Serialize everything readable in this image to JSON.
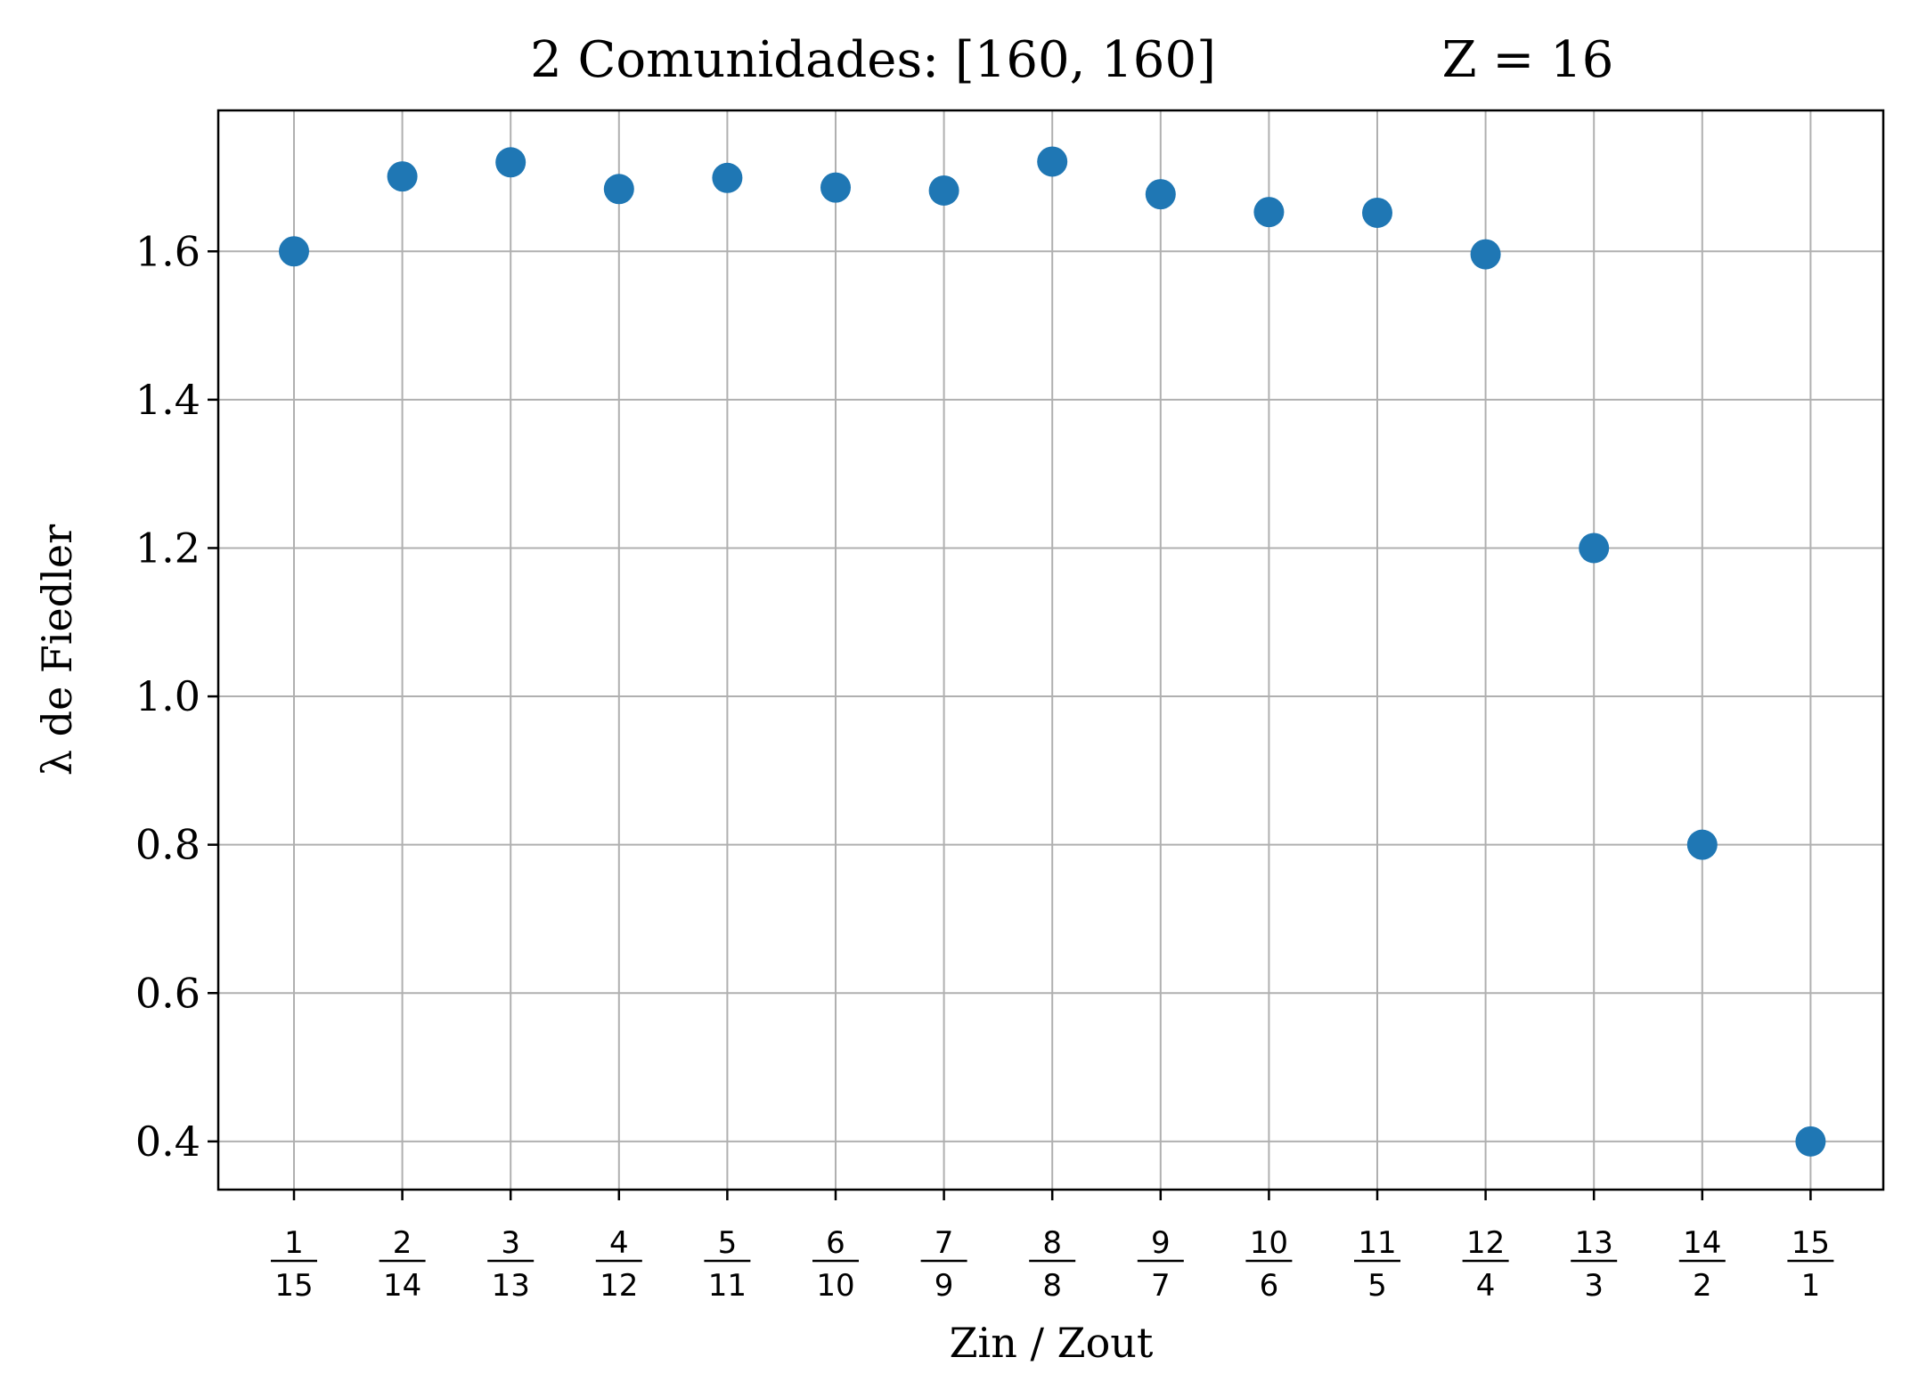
{
  "chart_data": {
    "type": "scatter",
    "title": "2 Comunidades: [160, 160]",
    "title_right": "Z = 16",
    "xlabel": "Zin / Zout",
    "ylabel": "λ de Fiedler",
    "categories": [
      {
        "num": "1",
        "den": "15"
      },
      {
        "num": "2",
        "den": "14"
      },
      {
        "num": "3",
        "den": "13"
      },
      {
        "num": "4",
        "den": "12"
      },
      {
        "num": "5",
        "den": "11"
      },
      {
        "num": "6",
        "den": "10"
      },
      {
        "num": "7",
        "den": "9"
      },
      {
        "num": "8",
        "den": "8"
      },
      {
        "num": "9",
        "den": "7"
      },
      {
        "num": "10",
        "den": "6"
      },
      {
        "num": "11",
        "den": "5"
      },
      {
        "num": "12",
        "den": "4"
      },
      {
        "num": "13",
        "den": "3"
      },
      {
        "num": "14",
        "den": "2"
      },
      {
        "num": "15",
        "den": "1"
      }
    ],
    "values": [
      1.6,
      1.701,
      1.72,
      1.684,
      1.699,
      1.686,
      1.682,
      1.721,
      1.677,
      1.653,
      1.652,
      1.596,
      1.2,
      0.8,
      0.4
    ],
    "yticks": [
      "0.4",
      "0.6",
      "0.8",
      "1.0",
      "1.2",
      "1.4",
      "1.6"
    ],
    "ylim": [
      0.335,
      1.79
    ],
    "grid": true,
    "marker_color": "#1f77b4",
    "grid_color": "#b0b0b0"
  }
}
